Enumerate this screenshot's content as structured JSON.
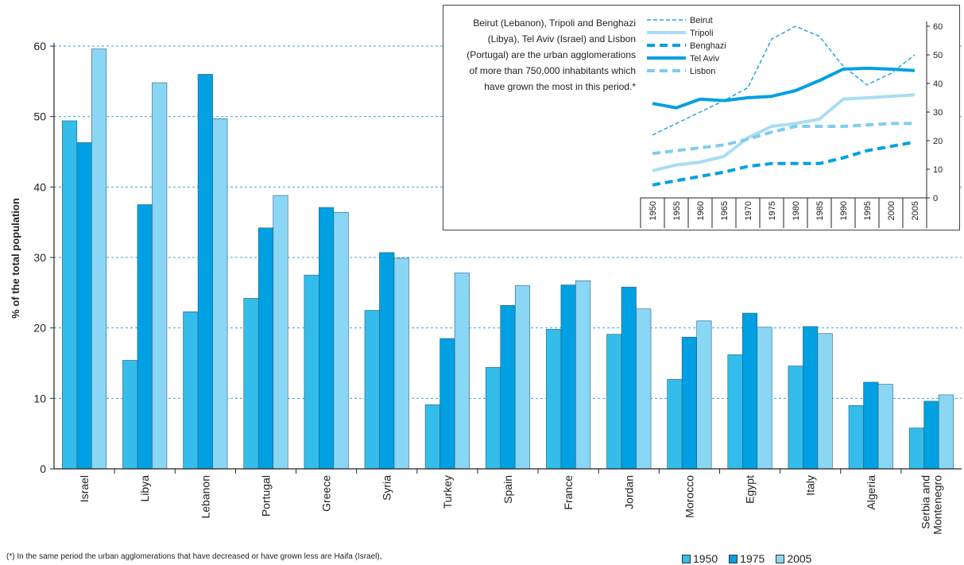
{
  "chart_data": [
    {
      "type": "bar",
      "ylabel": "% of the total population",
      "ylim": [
        0,
        60
      ],
      "yticks": [
        0,
        10,
        20,
        30,
        40,
        50,
        60
      ],
      "grid": "horizontal dashed",
      "categories": [
        "Israel",
        "Libya",
        "Lebanon",
        "Portugal",
        "Greece",
        "Syria",
        "Turkey",
        "Spain",
        "France",
        "Jordan",
        "Morocco",
        "Egypt",
        "Italy",
        "Algeria",
        "Serbia and Montenegro"
      ],
      "series": [
        {
          "name": "1950",
          "color": "#34bdea",
          "values": [
            49.4,
            15.4,
            22.3,
            24.2,
            27.5,
            22.5,
            9.1,
            14.4,
            19.8,
            19.1,
            12.7,
            16.2,
            14.6,
            9.0,
            5.8
          ]
        },
        {
          "name": "1975",
          "color": "#00a0e3",
          "values": [
            46.3,
            37.5,
            56.0,
            34.2,
            37.1,
            30.7,
            18.5,
            23.2,
            26.1,
            25.8,
            18.7,
            22.1,
            20.2,
            12.3,
            9.6
          ]
        },
        {
          "name": "2005",
          "color": "#8ad6f5",
          "values": [
            59.6,
            54.8,
            49.7,
            38.8,
            36.4,
            29.9,
            27.8,
            26.0,
            26.7,
            22.7,
            21.0,
            20.1,
            19.2,
            12.0,
            10.5
          ]
        }
      ],
      "legend": "bottom-right"
    },
    {
      "type": "line",
      "note": "Beirut (Lebanon), Tripoli and Benghazi (Libya), Tel Aviv (Israel) and Lisbon (Portugal) are the urban agglomerations of more than 750,000 inhabitants which have grown the most in this period.*",
      "x": [
        "1950",
        "1955",
        "1960",
        "1965",
        "1970",
        "1975",
        "1980",
        "1985",
        "1990",
        "1995",
        "2000",
        "2005"
      ],
      "ylim": [
        0,
        60
      ],
      "yticks": [
        0,
        10,
        20,
        30,
        40,
        50,
        60
      ],
      "axis_position": "right",
      "legend": "top-left",
      "series": [
        {
          "name": "Beirut",
          "style": "thin-dashed",
          "color": "#1fa7e1",
          "values": [
            22,
            26,
            30,
            34,
            38.5,
            55.5,
            60,
            56.5,
            46,
            39.5,
            43.5,
            50
          ]
        },
        {
          "name": "Tripoli",
          "style": "thick-solid",
          "color": "#a9ddf3",
          "values": [
            9.5,
            11.5,
            12.5,
            14.5,
            21,
            25,
            26,
            27.5,
            34.5,
            35,
            35.5,
            36
          ]
        },
        {
          "name": "Benghazi",
          "style": "thick-dashed",
          "color": "#00a0e3",
          "values": [
            4.5,
            6,
            7.5,
            9,
            11,
            12,
            12,
            12,
            14,
            16.5,
            18,
            19.5
          ]
        },
        {
          "name": "Tel Aviv",
          "style": "thick-solid",
          "color": "#00a0e3",
          "values": [
            33,
            31.5,
            34.5,
            34,
            35,
            35.5,
            37.5,
            41,
            45,
            45.3,
            45,
            44.5
          ]
        },
        {
          "name": "Lisbon",
          "style": "thick-dashed",
          "color": "#7fcdf0",
          "values": [
            15.5,
            16.5,
            17.5,
            18.5,
            20.5,
            23,
            25,
            25,
            25,
            25.5,
            26,
            26
          ]
        }
      ]
    }
  ],
  "footnote": "(*) In the same period the urban agglomerations that have decreased or have grown less are Haifa (Israel),"
}
